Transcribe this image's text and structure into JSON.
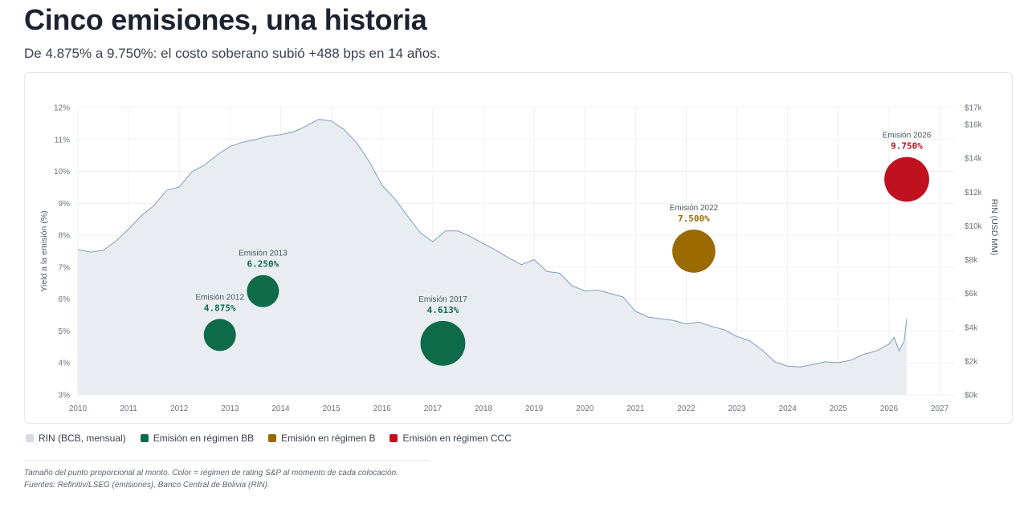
{
  "header": {
    "title": "Cinco emisiones, una historia",
    "subtitle": "De 4.875% a 9.750%: el costo soberano subió +488 bps en 14 años."
  },
  "chart_data": {
    "type": "scatter",
    "xlabel": "",
    "ylabel": "Yield a la emisión (%)",
    "y2label": "RIN (USD MM)",
    "xlim": [
      2010,
      2027.3
    ],
    "ylim": [
      3,
      12
    ],
    "y2lim": [
      0,
      17000
    ],
    "x_ticks": [
      2010,
      2011,
      2012,
      2013,
      2014,
      2015,
      2016,
      2017,
      2018,
      2019,
      2020,
      2021,
      2022,
      2023,
      2024,
      2025,
      2026,
      2027
    ],
    "x_tick_labels": [
      "2010",
      "2011",
      "2012",
      "2013",
      "2014",
      "2015",
      "2016",
      "2017",
      "2018",
      "2019",
      "2020",
      "2021",
      "2022",
      "2023",
      "2024",
      "2025",
      "2026",
      "2027"
    ],
    "y_ticks": [
      3,
      4,
      5,
      6,
      7,
      8,
      9,
      10,
      11,
      12
    ],
    "y_tick_labels": [
      "3%",
      "4%",
      "5%",
      "6%",
      "7%",
      "8%",
      "9%",
      "10%",
      "11%",
      "12%"
    ],
    "y2_ticks": [
      0,
      2000,
      4000,
      6000,
      8000,
      10000,
      12000,
      14000,
      16000,
      17000
    ],
    "y2_tick_labels": [
      "$0k",
      "$2k",
      "$4k",
      "$6k",
      "$8k",
      "$10k",
      "$12k",
      "$14k",
      "$16k",
      "$17k"
    ],
    "grid": true,
    "rin_series": {
      "name": "RIN (BCB, mensual)",
      "color": "#7f9cc0",
      "fill": "#e9edf2",
      "x": [
        2010.0,
        2010.25,
        2010.5,
        2010.75,
        2011.0,
        2011.25,
        2011.5,
        2011.75,
        2012.0,
        2012.25,
        2012.5,
        2012.75,
        2013.0,
        2013.25,
        2013.5,
        2013.75,
        2014.0,
        2014.25,
        2014.5,
        2014.75,
        2015.0,
        2015.25,
        2015.5,
        2015.75,
        2016.0,
        2016.25,
        2016.5,
        2016.75,
        2017.0,
        2017.25,
        2017.5,
        2017.75,
        2018.0,
        2018.25,
        2018.5,
        2018.75,
        2019.0,
        2019.25,
        2019.5,
        2019.75,
        2020.0,
        2020.25,
        2020.5,
        2020.75,
        2021.0,
        2021.25,
        2021.5,
        2021.75,
        2022.0,
        2022.25,
        2022.5,
        2022.75,
        2023.0,
        2023.25,
        2023.5,
        2023.75,
        2024.0,
        2024.25,
        2024.5,
        2024.75,
        2025.0,
        2025.25,
        2025.5,
        2025.75,
        2026.0,
        2026.1,
        2026.2,
        2026.3,
        2026.35
      ],
      "values": [
        8600,
        8450,
        8550,
        9100,
        9800,
        10600,
        11200,
        12100,
        12300,
        13200,
        13600,
        14200,
        14700,
        14950,
        15100,
        15300,
        15400,
        15550,
        15900,
        16300,
        16200,
        15700,
        14900,
        13800,
        12400,
        11600,
        10600,
        9600,
        9050,
        9700,
        9700,
        9350,
        8950,
        8550,
        8100,
        7700,
        8000,
        7300,
        7200,
        6450,
        6150,
        6200,
        6000,
        5800,
        4950,
        4600,
        4500,
        4400,
        4200,
        4300,
        4050,
        3850,
        3450,
        3200,
        2650,
        1950,
        1700,
        1650,
        1800,
        1950,
        1900,
        2050,
        2400,
        2600,
        3000,
        3400,
        2600,
        3200,
        4500
      ]
    },
    "emissions": [
      {
        "name": "Emisión 2012",
        "x": 2012.8,
        "yield": 4.875,
        "yield_label": "4.875%",
        "regime": "BB",
        "size": 1.0
      },
      {
        "name": "Emisión 2013",
        "x": 2013.65,
        "yield": 6.25,
        "yield_label": "6.250%",
        "regime": "BB",
        "size": 1.0
      },
      {
        "name": "Emisión 2017",
        "x": 2017.2,
        "yield": 4.613,
        "yield_label": "4.613%",
        "regime": "BB",
        "size": 1.95
      },
      {
        "name": "Emisión 2022",
        "x": 2022.15,
        "yield": 7.5,
        "yield_label": "7.500%",
        "regime": "B",
        "size": 1.8
      },
      {
        "name": "Emisión 2026",
        "x": 2026.35,
        "yield": 9.75,
        "yield_label": "9.750%",
        "regime": "CCC",
        "size": 1.95
      }
    ],
    "regime_colors": {
      "BB": "#0e6b4a",
      "B": "#9a6a00",
      "CCC": "#c0111f"
    },
    "legend_placement": "bottom-left"
  },
  "legend": {
    "items": [
      {
        "label": "RIN (BCB, mensual)",
        "color": "#d5dce5"
      },
      {
        "label": "Emisión en régimen BB",
        "color": "#0e6b4a"
      },
      {
        "label": "Emisión en régimen B",
        "color": "#9a6a00"
      },
      {
        "label": "Emisión en régimen CCC",
        "color": "#c0111f"
      }
    ]
  },
  "footnotes": {
    "line1": "Tamaño del punto proporcional al monto. Color = régimen de rating S&P al momento de cada colocación.",
    "line2": "Fuentes: Refinitiv/LSEG (emisiones), Banco Central de Bolivia (RIN)."
  }
}
